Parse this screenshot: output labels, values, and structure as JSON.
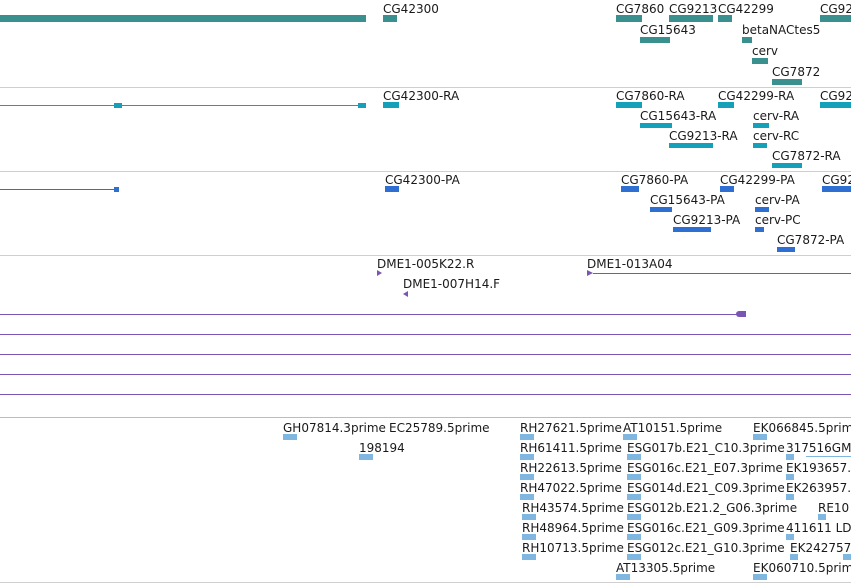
{
  "colors": {
    "gene": "#3a8f8f",
    "transcript": "#14a0b8",
    "protein": "#2f6fd1",
    "clone": "#7a55b3",
    "est": "#7fb7e0",
    "separator": "#cfcfcf"
  },
  "tracks": {
    "genes": {
      "labels": [
        "CG42300",
        "CG7860",
        "CG9213",
        "CG42299",
        "CG92",
        "CG15643",
        "betaNACtes5",
        "cerv",
        "CG7872"
      ]
    },
    "transcripts": {
      "labels": [
        "CG42300-RA",
        "CG7860-RA",
        "CG42299-RA",
        "CG92",
        "CG15643-RA",
        "cerv-RA",
        "CG9213-RA",
        "cerv-RC",
        "CG7872-RA"
      ]
    },
    "proteins": {
      "labels": [
        "CG42300-PA",
        "CG7860-PA",
        "CG42299-PA",
        "CG92",
        "CG15643-PA",
        "cerv-PA",
        "CG9213-PA",
        "cerv-PC",
        "CG7872-PA"
      ]
    },
    "clones": {
      "labels": [
        "DME1-005K22.R",
        "DME1-013A04",
        "DME1-007H14.F"
      ]
    },
    "ests": {
      "labels": [
        "GH07814.3prime",
        "EC25789.5prime",
        "RH27621.5prime",
        "AT10151.5prime",
        "EK066845.5prim",
        "198194",
        "RH61411.5prime",
        "ESG017b.E21_C10.3prime",
        "317516GM",
        "RH22613.5prime",
        "ESG016c.E21_E07.3prime",
        "EK193657.",
        "RH47022.5prime",
        "ESG014d.E21_C09.3prime",
        "EK263957.",
        "RH43574.5prime",
        "ESG012b.E21.2_G06.3prime",
        "RE10",
        "RH48964.5prime",
        "ESG016c.E21_G09.3prime",
        "411611 LD",
        "RH10713.5prime",
        "ESG012c.E21_G10.3prime",
        "EK242757",
        "AT13305.5prime",
        "EK060710.5prim"
      ]
    }
  }
}
